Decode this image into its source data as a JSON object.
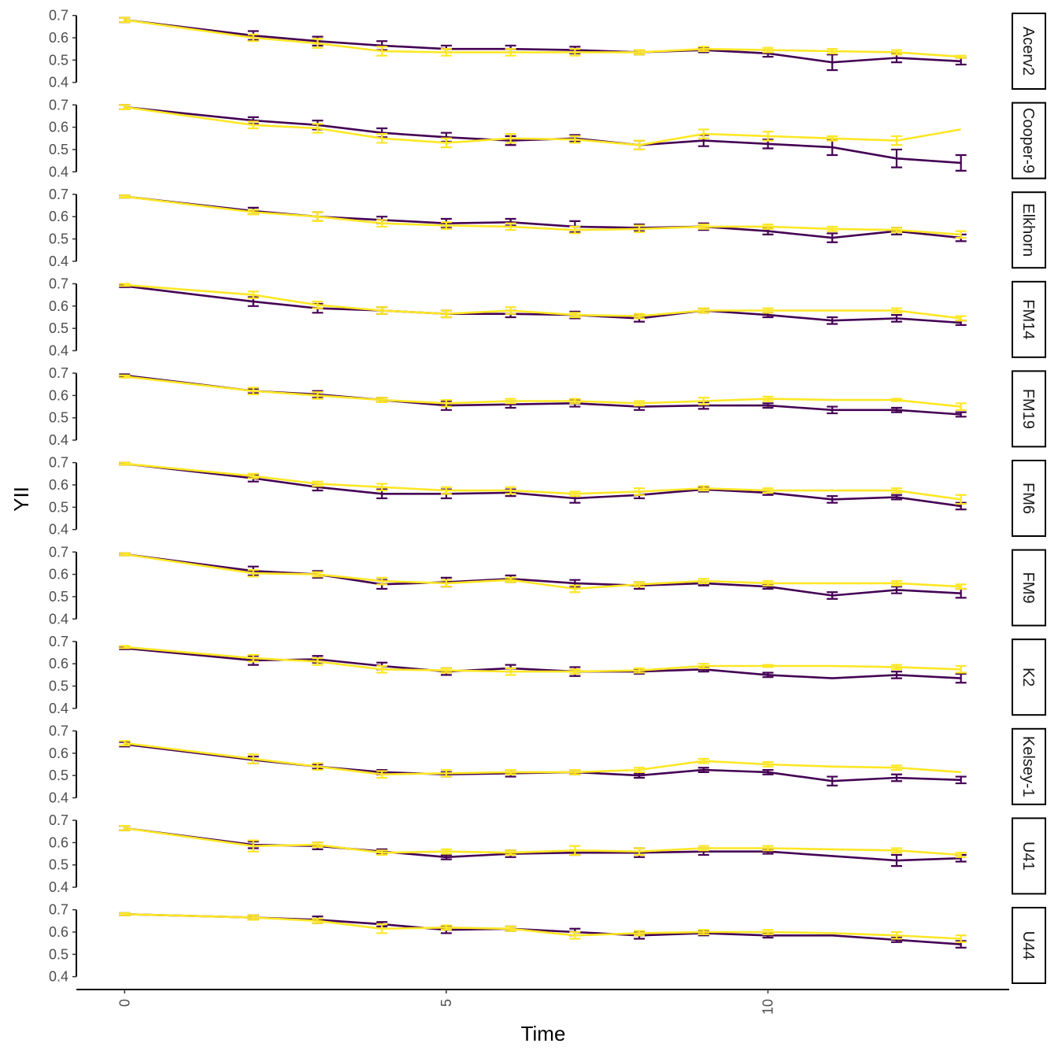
{
  "chart_data": {
    "type": "line",
    "xlabel": "Time",
    "ylabel": "YII",
    "x": [
      0,
      2,
      3,
      4,
      5,
      6,
      7,
      8,
      9,
      10,
      11,
      12,
      13
    ],
    "xticks": [
      0,
      5,
      10
    ],
    "yticks": [
      0.4,
      0.5,
      0.6,
      0.7
    ],
    "ylim": [
      0.36,
      0.72
    ],
    "xlim": [
      -0.75,
      13.75
    ],
    "grid": false,
    "legend": "none",
    "series_colors": [
      "#440154",
      "#FDE725"
    ],
    "panels": [
      {
        "label": "Acerv2",
        "series": [
          {
            "values": [
              0.68,
              0.61,
              0.585,
              0.565,
              0.55,
              0.55,
              0.545,
              0.535,
              0.545,
              0.53,
              0.49,
              0.51,
              0.495
            ],
            "errors": [
              0.01,
              0.02,
              0.02,
              0.02,
              0.015,
              0.015,
              0.015,
              0.01,
              0.01,
              0.015,
              0.035,
              0.02,
              0.015
            ]
          },
          {
            "values": [
              0.68,
              0.6,
              0.575,
              0.54,
              0.535,
              0.535,
              0.535,
              0.535,
              0.55,
              0.545,
              0.54,
              0.535,
              0.515
            ],
            "errors": [
              0.01,
              0.015,
              0.02,
              0.02,
              0.015,
              0.015,
              0.015,
              0.01,
              0.01,
              0.01,
              0.01,
              0.01,
              0.005
            ]
          }
        ]
      },
      {
        "label": "Cooper-9",
        "series": [
          {
            "values": [
              0.69,
              0.63,
              0.61,
              0.575,
              0.555,
              0.54,
              0.55,
              0.52,
              0.54,
              0.525,
              0.51,
              0.46,
              0.44
            ],
            "errors": [
              0.01,
              0.015,
              0.02,
              0.02,
              0.02,
              0.02,
              0.015,
              0.02,
              0.025,
              0.02,
              0.035,
              0.04,
              0.035
            ]
          },
          {
            "values": [
              0.69,
              0.61,
              0.595,
              0.55,
              0.53,
              0.55,
              0.545,
              0.52,
              0.57,
              0.56,
              0.55,
              0.54,
              0.59
            ],
            "errors": [
              0.01,
              0.015,
              0.02,
              0.02,
              0.02,
              0.02,
              0.015,
              0.02,
              0.02,
              0.02,
              0.01,
              0.02,
              0.0
            ]
          }
        ]
      },
      {
        "label": "Elkhorn",
        "series": [
          {
            "values": [
              0.69,
              0.625,
              0.6,
              0.585,
              0.57,
              0.575,
              0.555,
              0.55,
              0.555,
              0.535,
              0.505,
              0.535,
              0.505
            ],
            "errors": [
              0.005,
              0.015,
              0.02,
              0.015,
              0.02,
              0.015,
              0.025,
              0.015,
              0.015,
              0.015,
              0.02,
              0.015,
              0.015
            ]
          },
          {
            "values": [
              0.69,
              0.62,
              0.6,
              0.57,
              0.56,
              0.555,
              0.54,
              0.545,
              0.555,
              0.555,
              0.545,
              0.54,
              0.52
            ],
            "errors": [
              0.005,
              0.01,
              0.02,
              0.015,
              0.015,
              0.015,
              0.015,
              0.015,
              0.01,
              0.01,
              0.01,
              0.01,
              0.015
            ]
          }
        ]
      },
      {
        "label": "FM14",
        "series": [
          {
            "values": [
              0.69,
              0.62,
              0.59,
              0.58,
              0.565,
              0.565,
              0.56,
              0.545,
              0.58,
              0.56,
              0.535,
              0.545,
              0.525
            ],
            "errors": [
              0.005,
              0.02,
              0.02,
              0.015,
              0.015,
              0.015,
              0.015,
              0.015,
              0.01,
              0.01,
              0.015,
              0.015,
              0.01
            ]
          },
          {
            "values": [
              0.695,
              0.65,
              0.605,
              0.58,
              0.565,
              0.58,
              0.56,
              0.555,
              0.58,
              0.58,
              0.58,
              0.58,
              0.545
            ],
            "errors": [
              0.005,
              0.015,
              0.015,
              0.015,
              0.015,
              0.015,
              0.01,
              0.01,
              0.01,
              0.01,
              0.0,
              0.01,
              0.01
            ]
          }
        ]
      },
      {
        "label": "FM19",
        "series": [
          {
            "values": [
              0.69,
              0.62,
              0.605,
              0.58,
              0.555,
              0.56,
              0.565,
              0.55,
              0.555,
              0.555,
              0.535,
              0.535,
              0.515
            ],
            "errors": [
              0.005,
              0.01,
              0.015,
              0.01,
              0.02,
              0.015,
              0.015,
              0.015,
              0.015,
              0.01,
              0.015,
              0.01,
              0.01
            ]
          },
          {
            "values": [
              0.685,
              0.62,
              0.6,
              0.58,
              0.565,
              0.575,
              0.575,
              0.565,
              0.575,
              0.585,
              0.58,
              0.58,
              0.55
            ],
            "errors": [
              0.005,
              0.015,
              0.015,
              0.01,
              0.015,
              0.01,
              0.01,
              0.01,
              0.015,
              0.01,
              0.0,
              0.005,
              0.015
            ]
          }
        ]
      },
      {
        "label": "FM6",
        "series": [
          {
            "values": [
              0.695,
              0.63,
              0.59,
              0.56,
              0.56,
              0.565,
              0.54,
              0.555,
              0.58,
              0.565,
              0.535,
              0.545,
              0.505
            ],
            "errors": [
              0.005,
              0.015,
              0.015,
              0.02,
              0.02,
              0.015,
              0.02,
              0.015,
              0.01,
              0.01,
              0.015,
              0.01,
              0.015
            ]
          },
          {
            "values": [
              0.695,
              0.64,
              0.605,
              0.59,
              0.575,
              0.575,
              0.56,
              0.57,
              0.585,
              0.575,
              0.575,
              0.575,
              0.535
            ],
            "errors": [
              0.005,
              0.01,
              0.01,
              0.015,
              0.015,
              0.015,
              0.01,
              0.015,
              0.01,
              0.01,
              0.0,
              0.01,
              0.02
            ]
          }
        ]
      },
      {
        "label": "FM9",
        "series": [
          {
            "values": [
              0.69,
              0.615,
              0.6,
              0.555,
              0.565,
              0.58,
              0.56,
              0.55,
              0.56,
              0.545,
              0.505,
              0.53,
              0.515
            ],
            "errors": [
              0.005,
              0.02,
              0.015,
              0.02,
              0.02,
              0.015,
              0.015,
              0.015,
              0.01,
              0.01,
              0.015,
              0.015,
              0.02
            ]
          },
          {
            "values": [
              0.69,
              0.605,
              0.6,
              0.57,
              0.56,
              0.575,
              0.535,
              0.555,
              0.57,
              0.56,
              0.56,
              0.56,
              0.545
            ],
            "errors": [
              0.005,
              0.015,
              0.01,
              0.015,
              0.015,
              0.01,
              0.015,
              0.01,
              0.01,
              0.01,
              0.0,
              0.01,
              0.01
            ]
          }
        ]
      },
      {
        "label": "K2",
        "series": [
          {
            "values": [
              0.67,
              0.615,
              0.62,
              0.59,
              0.565,
              0.58,
              0.565,
              0.565,
              0.575,
              0.55,
              0.535,
              0.55,
              0.535
            ],
            "errors": [
              0.005,
              0.02,
              0.015,
              0.015,
              0.015,
              0.015,
              0.02,
              0.01,
              0.01,
              0.01,
              0.0,
              0.015,
              0.02
            ]
          },
          {
            "values": [
              0.675,
              0.625,
              0.61,
              0.575,
              0.57,
              0.565,
              0.565,
              0.57,
              0.59,
              0.59,
              0.59,
              0.585,
              0.575
            ],
            "errors": [
              0.005,
              0.015,
              0.015,
              0.015,
              0.01,
              0.015,
              0.01,
              0.01,
              0.01,
              0.005,
              0.0,
              0.01,
              0.015
            ]
          }
        ]
      },
      {
        "label": "Kelsey-1",
        "series": [
          {
            "values": [
              0.64,
              0.57,
              0.54,
              0.515,
              0.505,
              0.51,
              0.515,
              0.5,
              0.525,
              0.515,
              0.475,
              0.49,
              0.48
            ],
            "errors": [
              0.01,
              0.015,
              0.01,
              0.01,
              0.01,
              0.015,
              0.01,
              0.01,
              0.01,
              0.01,
              0.02,
              0.015,
              0.015
            ]
          },
          {
            "values": [
              0.645,
              0.575,
              0.54,
              0.505,
              0.51,
              0.515,
              0.515,
              0.525,
              0.565,
              0.55,
              0.54,
              0.535,
              0.515
            ],
            "errors": [
              0.01,
              0.02,
              0.015,
              0.015,
              0.015,
              0.01,
              0.01,
              0.01,
              0.01,
              0.01,
              0.0,
              0.01,
              0.0
            ]
          }
        ]
      },
      {
        "label": "U41",
        "series": [
          {
            "values": [
              0.665,
              0.59,
              0.585,
              0.56,
              0.535,
              0.55,
              0.555,
              0.555,
              0.56,
              0.56,
              0.54,
              0.52,
              0.53
            ],
            "errors": [
              0.01,
              0.015,
              0.015,
              0.01,
              0.01,
              0.015,
              0.01,
              0.02,
              0.015,
              0.01,
              0.0,
              0.025,
              0.015
            ]
          },
          {
            "values": [
              0.665,
              0.585,
              0.59,
              0.555,
              0.56,
              0.555,
              0.565,
              0.56,
              0.575,
              0.575,
              0.57,
              0.565,
              0.545
            ],
            "errors": [
              0.01,
              0.025,
              0.01,
              0.01,
              0.01,
              0.01,
              0.02,
              0.015,
              0.01,
              0.01,
              0.0,
              0.01,
              0.01
            ]
          }
        ]
      },
      {
        "label": "U44",
        "series": [
          {
            "values": [
              0.68,
              0.665,
              0.655,
              0.635,
              0.61,
              0.615,
              0.6,
              0.585,
              0.595,
              0.585,
              0.585,
              0.565,
              0.545
            ],
            "errors": [
              0.005,
              0.01,
              0.015,
              0.01,
              0.015,
              0.01,
              0.015,
              0.015,
              0.01,
              0.01,
              0.0,
              0.01,
              0.015
            ]
          },
          {
            "values": [
              0.68,
              0.665,
              0.65,
              0.615,
              0.62,
              0.615,
              0.585,
              0.595,
              0.6,
              0.6,
              0.595,
              0.585,
              0.57
            ],
            "errors": [
              0.005,
              0.01,
              0.01,
              0.02,
              0.01,
              0.01,
              0.015,
              0.01,
              0.01,
              0.01,
              0.0,
              0.015,
              0.015
            ]
          }
        ]
      }
    ]
  }
}
